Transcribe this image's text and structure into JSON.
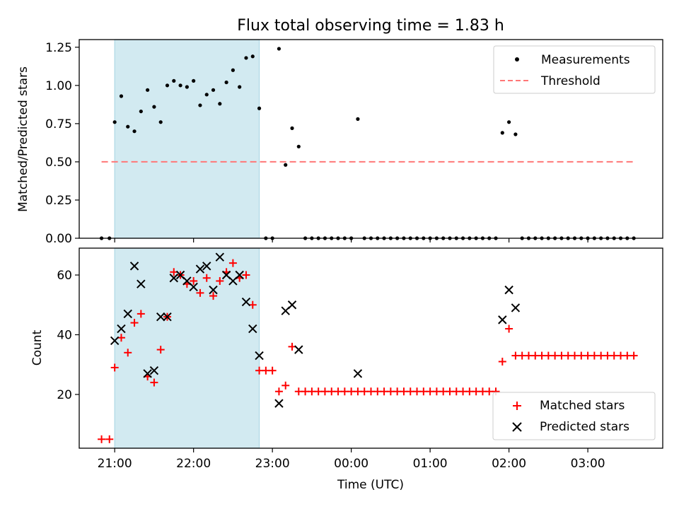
{
  "title": "Flux total observing time = 1.83 h",
  "colors": {
    "measurement": "#000000",
    "threshold": "#ff7777",
    "matched": "#ff0000",
    "predicted": "#000000",
    "shade": "#add8e6"
  },
  "chart_data": [
    {
      "type": "scatter",
      "panel": "top",
      "ylabel": "Matched/Predicted stars",
      "xlabel": "",
      "xlim": [
        "20:33",
        "03:57"
      ],
      "ylim": [
        0,
        1.3
      ],
      "yticks": [
        "0.00",
        "0.25",
        "0.50",
        "0.75",
        "1.00",
        "1.25"
      ],
      "shaded_interval": [
        "21:00",
        "22:50"
      ],
      "legend_position": "top-right",
      "series": [
        {
          "name": "Measurements",
          "marker": "dot",
          "points": [
            [
              "20:50",
              0
            ],
            [
              "20:56",
              0
            ],
            [
              "21:00",
              0.76
            ],
            [
              "21:05",
              0.93
            ],
            [
              "21:10",
              0.73
            ],
            [
              "21:15",
              0.7
            ],
            [
              "21:20",
              0.83
            ],
            [
              "21:25",
              0.97
            ],
            [
              "21:30",
              0.86
            ],
            [
              "21:35",
              0.76
            ],
            [
              "21:40",
              1.0
            ],
            [
              "21:45",
              1.03
            ],
            [
              "21:50",
              1.0
            ],
            [
              "21:55",
              0.99
            ],
            [
              "22:00",
              1.03
            ],
            [
              "22:05",
              0.87
            ],
            [
              "22:10",
              0.94
            ],
            [
              "22:15",
              0.97
            ],
            [
              "22:20",
              0.88
            ],
            [
              "22:25",
              1.02
            ],
            [
              "22:30",
              1.1
            ],
            [
              "22:35",
              0.99
            ],
            [
              "22:40",
              1.18
            ],
            [
              "22:45",
              1.19
            ],
            [
              "22:50",
              0.85
            ],
            [
              "22:55",
              0
            ],
            [
              "23:00",
              0
            ],
            [
              "23:05",
              1.24
            ],
            [
              "23:10",
              0.48
            ],
            [
              "23:15",
              0.72
            ],
            [
              "23:20",
              0.6
            ],
            [
              "23:25",
              0
            ],
            [
              "23:30",
              0
            ],
            [
              "23:35",
              0
            ],
            [
              "23:40",
              0
            ],
            [
              "23:45",
              0
            ],
            [
              "23:50",
              0
            ],
            [
              "23:55",
              0
            ],
            [
              "00:00",
              0
            ],
            [
              "00:05",
              0.78
            ],
            [
              "00:10",
              0
            ],
            [
              "00:15",
              0
            ],
            [
              "00:20",
              0
            ],
            [
              "00:25",
              0
            ],
            [
              "00:30",
              0
            ],
            [
              "00:35",
              0
            ],
            [
              "00:40",
              0
            ],
            [
              "00:45",
              0
            ],
            [
              "00:50",
              0
            ],
            [
              "00:55",
              0
            ],
            [
              "01:00",
              0
            ],
            [
              "01:05",
              0
            ],
            [
              "01:10",
              0
            ],
            [
              "01:15",
              0
            ],
            [
              "01:20",
              0
            ],
            [
              "01:25",
              0
            ],
            [
              "01:30",
              0
            ],
            [
              "01:35",
              0
            ],
            [
              "01:40",
              0
            ],
            [
              "01:45",
              0
            ],
            [
              "01:50",
              0
            ],
            [
              "01:55",
              0.69
            ],
            [
              "02:00",
              0.76
            ],
            [
              "02:05",
              0.68
            ],
            [
              "02:10",
              0
            ],
            [
              "02:15",
              0
            ],
            [
              "02:20",
              0
            ],
            [
              "02:25",
              0
            ],
            [
              "02:30",
              0
            ],
            [
              "02:35",
              0
            ],
            [
              "02:40",
              0
            ],
            [
              "02:45",
              0
            ],
            [
              "02:50",
              0
            ],
            [
              "02:55",
              0
            ],
            [
              "03:00",
              0
            ],
            [
              "03:05",
              0
            ],
            [
              "03:10",
              0
            ],
            [
              "03:15",
              0
            ],
            [
              "03:20",
              0
            ],
            [
              "03:25",
              0
            ],
            [
              "03:30",
              0
            ],
            [
              "03:35",
              0
            ]
          ]
        },
        {
          "name": "Threshold",
          "marker": "dashed-line",
          "points": [
            [
              "20:50",
              0.5
            ],
            [
              "03:35",
              0.5
            ]
          ]
        }
      ]
    },
    {
      "type": "scatter",
      "panel": "bottom",
      "ylabel": "Count",
      "xlabel": "Time (UTC)",
      "xlim": [
        "20:33",
        "03:57"
      ],
      "ylim": [
        2,
        69
      ],
      "yticks": [
        "20",
        "40",
        "60"
      ],
      "xticks": [
        "21:00",
        "22:00",
        "23:00",
        "00:00",
        "01:00",
        "02:00",
        "03:00"
      ],
      "shaded_interval": [
        "21:00",
        "22:50"
      ],
      "legend_position": "bottom-right",
      "series": [
        {
          "name": "Matched stars",
          "marker": "plus",
          "points": [
            [
              "20:50",
              5
            ],
            [
              "20:56",
              5
            ],
            [
              "21:00",
              29
            ],
            [
              "21:05",
              39
            ],
            [
              "21:10",
              34
            ],
            [
              "21:15",
              44
            ],
            [
              "21:20",
              47
            ],
            [
              "21:25",
              26
            ],
            [
              "21:30",
              24
            ],
            [
              "21:35",
              35
            ],
            [
              "21:40",
              46
            ],
            [
              "21:45",
              61
            ],
            [
              "21:50",
              60
            ],
            [
              "21:55",
              57
            ],
            [
              "22:00",
              58
            ],
            [
              "22:05",
              54
            ],
            [
              "22:10",
              59
            ],
            [
              "22:15",
              53
            ],
            [
              "22:20",
              58
            ],
            [
              "22:25",
              61
            ],
            [
              "22:30",
              64
            ],
            [
              "22:35",
              59
            ],
            [
              "22:40",
              60
            ],
            [
              "22:45",
              50
            ],
            [
              "22:50",
              28
            ],
            [
              "22:55",
              28
            ],
            [
              "23:00",
              28
            ],
            [
              "23:05",
              21
            ],
            [
              "23:10",
              23
            ],
            [
              "23:15",
              36
            ],
            [
              "23:20",
              21
            ],
            [
              "23:25",
              21
            ],
            [
              "23:30",
              21
            ],
            [
              "23:35",
              21
            ],
            [
              "23:40",
              21
            ],
            [
              "23:45",
              21
            ],
            [
              "23:50",
              21
            ],
            [
              "23:55",
              21
            ],
            [
              "00:00",
              21
            ],
            [
              "00:05",
              21
            ],
            [
              "00:10",
              21
            ],
            [
              "00:15",
              21
            ],
            [
              "00:20",
              21
            ],
            [
              "00:25",
              21
            ],
            [
              "00:30",
              21
            ],
            [
              "00:35",
              21
            ],
            [
              "00:40",
              21
            ],
            [
              "00:45",
              21
            ],
            [
              "00:50",
              21
            ],
            [
              "00:55",
              21
            ],
            [
              "01:00",
              21
            ],
            [
              "01:05",
              21
            ],
            [
              "01:10",
              21
            ],
            [
              "01:15",
              21
            ],
            [
              "01:20",
              21
            ],
            [
              "01:25",
              21
            ],
            [
              "01:30",
              21
            ],
            [
              "01:35",
              21
            ],
            [
              "01:40",
              21
            ],
            [
              "01:45",
              21
            ],
            [
              "01:50",
              21
            ],
            [
              "01:55",
              31
            ],
            [
              "02:00",
              42
            ],
            [
              "02:05",
              33
            ],
            [
              "02:10",
              33
            ],
            [
              "02:15",
              33
            ],
            [
              "02:20",
              33
            ],
            [
              "02:25",
              33
            ],
            [
              "02:30",
              33
            ],
            [
              "02:35",
              33
            ],
            [
              "02:40",
              33
            ],
            [
              "02:45",
              33
            ],
            [
              "02:50",
              33
            ],
            [
              "02:55",
              33
            ],
            [
              "03:00",
              33
            ],
            [
              "03:05",
              33
            ],
            [
              "03:10",
              33
            ],
            [
              "03:15",
              33
            ],
            [
              "03:20",
              33
            ],
            [
              "03:25",
              33
            ],
            [
              "03:30",
              33
            ],
            [
              "03:35",
              33
            ]
          ]
        },
        {
          "name": "Predicted stars",
          "marker": "x",
          "points": [
            [
              "21:00",
              38
            ],
            [
              "21:05",
              42
            ],
            [
              "21:10",
              47
            ],
            [
              "21:15",
              63
            ],
            [
              "21:20",
              57
            ],
            [
              "21:25",
              27
            ],
            [
              "21:30",
              28
            ],
            [
              "21:35",
              46
            ],
            [
              "21:40",
              46
            ],
            [
              "21:45",
              59
            ],
            [
              "21:50",
              60
            ],
            [
              "21:55",
              58
            ],
            [
              "22:00",
              56
            ],
            [
              "22:05",
              62
            ],
            [
              "22:10",
              63
            ],
            [
              "22:15",
              55
            ],
            [
              "22:20",
              66
            ],
            [
              "22:25",
              60
            ],
            [
              "22:30",
              58
            ],
            [
              "22:35",
              60
            ],
            [
              "22:40",
              51
            ],
            [
              "22:45",
              42
            ],
            [
              "22:50",
              33
            ],
            [
              "23:05",
              17
            ],
            [
              "23:10",
              48
            ],
            [
              "23:15",
              50
            ],
            [
              "23:20",
              35
            ],
            [
              "00:05",
              27
            ],
            [
              "01:55",
              45
            ],
            [
              "02:00",
              55
            ],
            [
              "02:05",
              49
            ]
          ]
        }
      ]
    }
  ]
}
